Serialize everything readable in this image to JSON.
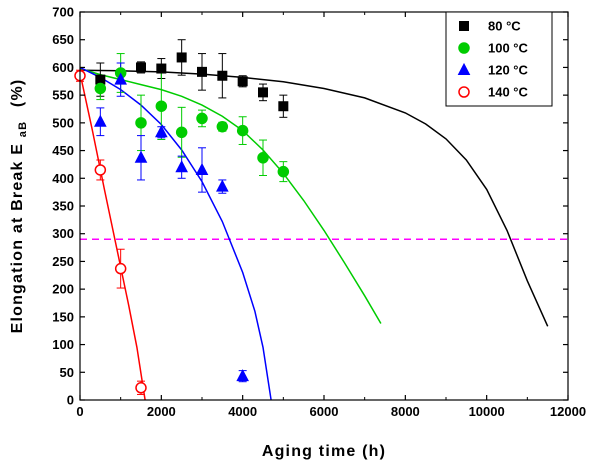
{
  "chart_data": {
    "type": "scatter",
    "xlabel": "Aging time (h)",
    "ylabel_main": "Elongation at Break E",
    "ylabel_sub": "aB",
    "ylabel_unit": "(%)",
    "xlim": [
      0,
      12000
    ],
    "ylim": [
      0,
      700
    ],
    "xticks": [
      0,
      2000,
      4000,
      6000,
      8000,
      10000,
      12000
    ],
    "yticks": [
      0,
      50,
      100,
      150,
      200,
      250,
      300,
      350,
      400,
      450,
      500,
      550,
      600,
      650,
      700
    ],
    "legend_position": "top-right",
    "reference_line": {
      "y": 290,
      "color": "#ff00ff",
      "style": "dashed"
    },
    "series": [
      {
        "name": "80 °C",
        "marker": "square",
        "color": "#000000",
        "filled": true,
        "points": [
          {
            "x": 500,
            "y": 578,
            "err": 30
          },
          {
            "x": 1500,
            "y": 600,
            "err": 10
          },
          {
            "x": 2000,
            "y": 598,
            "err": 18
          },
          {
            "x": 2500,
            "y": 618,
            "err": 32
          },
          {
            "x": 3000,
            "y": 592,
            "err": 33
          },
          {
            "x": 3500,
            "y": 585,
            "err": 40
          },
          {
            "x": 4000,
            "y": 575,
            "err": 10
          },
          {
            "x": 4500,
            "y": 555,
            "err": 15
          },
          {
            "x": 5000,
            "y": 530,
            "err": 20
          }
        ],
        "fit": [
          [
            0,
            595
          ],
          [
            1000,
            594
          ],
          [
            2000,
            592
          ],
          [
            3000,
            588
          ],
          [
            4000,
            582
          ],
          [
            5000,
            574
          ],
          [
            6000,
            562
          ],
          [
            7000,
            545
          ],
          [
            8000,
            518
          ],
          [
            8500,
            498
          ],
          [
            9000,
            471
          ],
          [
            9500,
            433
          ],
          [
            10000,
            380
          ],
          [
            10500,
            306
          ],
          [
            11000,
            215
          ],
          [
            11500,
            133
          ]
        ]
      },
      {
        "name": "100 °C",
        "marker": "circle",
        "color": "#00cc00",
        "filled": true,
        "points": [
          {
            "x": 500,
            "y": 562,
            "err": 20
          },
          {
            "x": 1000,
            "y": 590,
            "err": 35
          },
          {
            "x": 1500,
            "y": 500,
            "err": 50
          },
          {
            "x": 2000,
            "y": 530,
            "err": 60
          },
          {
            "x": 2500,
            "y": 483,
            "err": 45
          },
          {
            "x": 3000,
            "y": 508,
            "err": 15
          },
          {
            "x": 3500,
            "y": 493,
            "err": 8
          },
          {
            "x": 4000,
            "y": 486,
            "err": 25
          },
          {
            "x": 4500,
            "y": 437,
            "err": 32
          },
          {
            "x": 5000,
            "y": 412,
            "err": 18
          }
        ],
        "fit": [
          [
            0,
            598
          ],
          [
            500,
            587
          ],
          [
            1000,
            578
          ],
          [
            1500,
            569
          ],
          [
            2000,
            560
          ],
          [
            2500,
            548
          ],
          [
            3000,
            532
          ],
          [
            3500,
            512
          ],
          [
            4000,
            486
          ],
          [
            4500,
            451
          ],
          [
            5000,
            409
          ],
          [
            5500,
            360
          ],
          [
            6000,
            306
          ],
          [
            6500,
            248
          ],
          [
            7000,
            188
          ],
          [
            7400,
            138
          ]
        ]
      },
      {
        "name": "120 °C",
        "marker": "triangle",
        "color": "#0000ff",
        "filled": true,
        "points": [
          {
            "x": 500,
            "y": 502,
            "err": 25
          },
          {
            "x": 1000,
            "y": 578,
            "err": 30
          },
          {
            "x": 1500,
            "y": 437,
            "err": 40
          },
          {
            "x": 2000,
            "y": 483,
            "err": 10
          },
          {
            "x": 2500,
            "y": 420,
            "err": 20
          },
          {
            "x": 3000,
            "y": 415,
            "err": 40
          },
          {
            "x": 3500,
            "y": 385,
            "err": 12
          },
          {
            "x": 4000,
            "y": 43,
            "err": 10
          }
        ],
        "fit": [
          [
            0,
            600
          ],
          [
            500,
            582
          ],
          [
            1000,
            560
          ],
          [
            1500,
            532
          ],
          [
            2000,
            497
          ],
          [
            2500,
            451
          ],
          [
            3000,
            394
          ],
          [
            3500,
            322
          ],
          [
            4000,
            230
          ],
          [
            4300,
            160
          ],
          [
            4500,
            95
          ],
          [
            4700,
            0
          ]
        ]
      },
      {
        "name": "140 °C",
        "marker": "circle",
        "color": "#ff0000",
        "filled": false,
        "points": [
          {
            "x": 0,
            "y": 585,
            "err": 10
          },
          {
            "x": 500,
            "y": 415,
            "err": 18
          },
          {
            "x": 1000,
            "y": 237,
            "err": 35
          },
          {
            "x": 1500,
            "y": 22,
            "err": 12
          }
        ],
        "fit": [
          [
            0,
            590
          ],
          [
            300,
            488
          ],
          [
            600,
            380
          ],
          [
            900,
            275
          ],
          [
            1200,
            170
          ],
          [
            1400,
            95
          ],
          [
            1600,
            0
          ]
        ]
      }
    ]
  }
}
